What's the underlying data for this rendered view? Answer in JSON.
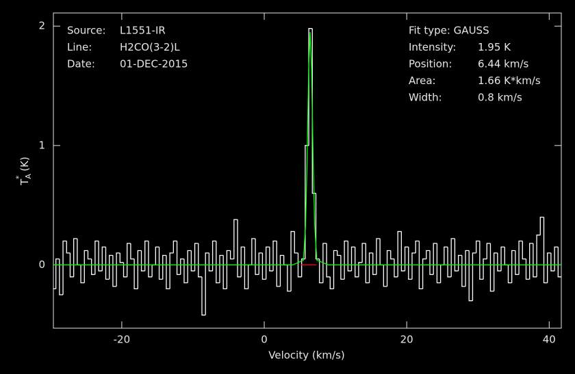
{
  "chart_data": {
    "type": "line",
    "xlabel": "Velocity (km/s)",
    "ylabel": {
      "base": "T",
      "sub": "A",
      "sup": "*",
      "unit": "(K)"
    },
    "xlim": [
      -29.6,
      41.7
    ],
    "ylim": [
      -0.53,
      2.11
    ],
    "xticks": [
      -20,
      0,
      20,
      40
    ],
    "yticks": [
      0,
      1,
      2
    ],
    "annotations": {
      "left": [
        [
          "Source:",
          "L1551-IR"
        ],
        [
          "Line:",
          "H2CO(3-2)L"
        ],
        [
          "Date:",
          "01-DEC-2015"
        ]
      ],
      "right": [
        [
          "Fit type: GAUSS"
        ],
        [
          "Intensity:",
          "1.95 K"
        ],
        [
          "Position:",
          "6.44 km/s"
        ],
        [
          "Area:",
          "1.66 K*km/s"
        ],
        [
          "Width:",
          "0.8 km/s"
        ]
      ]
    },
    "series": [
      {
        "color": "#ffffff",
        "drawstyle": "steps",
        "x": [
          -29.5,
          -29,
          -28.5,
          -28,
          -27.5,
          -27,
          -26.5,
          -26,
          -25.5,
          -25,
          -24.5,
          -24,
          -23.5,
          -23,
          -22.5,
          -22,
          -21.5,
          -21,
          -20.5,
          -20,
          -19.5,
          -19,
          -18.5,
          -18,
          -17.5,
          -17,
          -16.5,
          -16,
          -15.5,
          -15,
          -14.5,
          -14,
          -13.5,
          -13,
          -12.5,
          -12,
          -11.5,
          -11,
          -10.5,
          -10,
          -9.5,
          -9,
          -8.5,
          -8,
          -7.5,
          -7,
          -6.5,
          -6,
          -5.5,
          -5,
          -4.5,
          -4,
          -3.5,
          -3,
          -2.5,
          -2,
          -1.5,
          -1,
          -0.5,
          0,
          0.5,
          1,
          1.5,
          2,
          2.5,
          3,
          3.5,
          4,
          4.5,
          5,
          5.5,
          6,
          6.5,
          7,
          7.5,
          8,
          8.5,
          9,
          9.5,
          10,
          10.5,
          11,
          11.5,
          12,
          12.5,
          13,
          13.5,
          14,
          14.5,
          15,
          15.5,
          16,
          16.5,
          17,
          17.5,
          18,
          18.5,
          19,
          19.5,
          20,
          20.5,
          21,
          21.5,
          22,
          22.5,
          23,
          23.5,
          24,
          24.5,
          25,
          25.5,
          26,
          26.5,
          27,
          27.5,
          28,
          28.5,
          29,
          29.5,
          30,
          30.5,
          31,
          31.5,
          32,
          32.5,
          33,
          33.5,
          34,
          34.5,
          35,
          35.5,
          36,
          36.5,
          37,
          37.5,
          38,
          38.5,
          39,
          39.5,
          40,
          40.5,
          41,
          41.5
        ],
        "values": [
          -0.2,
          0.05,
          -0.25,
          0.2,
          0.1,
          -0.1,
          0.22,
          0.0,
          -0.15,
          0.12,
          0.05,
          -0.08,
          0.2,
          -0.05,
          0.15,
          -0.12,
          0.08,
          -0.18,
          0.1,
          0.02,
          -0.1,
          0.18,
          0.05,
          -0.2,
          0.12,
          -0.05,
          0.2,
          -0.1,
          0.0,
          0.15,
          -0.12,
          0.08,
          -0.2,
          0.1,
          0.2,
          -0.08,
          0.05,
          -0.15,
          0.12,
          -0.05,
          0.18,
          -0.1,
          -0.42,
          0.1,
          -0.05,
          0.2,
          -0.15,
          0.08,
          -0.2,
          0.12,
          0.05,
          0.38,
          -0.1,
          0.15,
          -0.2,
          0.0,
          0.22,
          -0.08,
          0.1,
          -0.12,
          0.15,
          -0.05,
          0.2,
          -0.18,
          0.08,
          0.0,
          -0.22,
          0.28,
          0.1,
          -0.1,
          0.05,
          1.0,
          1.98,
          0.6,
          0.05,
          -0.15,
          0.18,
          -0.1,
          -0.2,
          0.12,
          0.08,
          -0.12,
          0.2,
          -0.05,
          0.15,
          -0.1,
          0.02,
          0.18,
          -0.15,
          0.1,
          -0.08,
          0.22,
          0.0,
          -0.18,
          0.12,
          0.05,
          -0.1,
          0.28,
          -0.05,
          0.15,
          -0.12,
          0.1,
          0.2,
          -0.2,
          0.05,
          0.12,
          -0.08,
          0.18,
          -0.15,
          0.0,
          0.15,
          -0.1,
          0.22,
          -0.05,
          0.08,
          -0.18,
          0.12,
          -0.3,
          0.1,
          0.2,
          -0.12,
          0.05,
          0.18,
          -0.22,
          0.1,
          -0.05,
          0.15,
          0.0,
          -0.15,
          0.12,
          -0.08,
          0.2,
          0.05,
          -0.12,
          0.18,
          -0.1,
          0.25,
          0.4,
          -0.15,
          0.1,
          -0.05,
          0.15,
          -0.1
        ]
      },
      {
        "color": "#00ff00",
        "x": [
          -29.6,
          4.0,
          5.5,
          5.8,
          6.0,
          6.24,
          6.44,
          6.64,
          6.88,
          7.08,
          7.38,
          9.0,
          41.7
        ],
        "values": [
          0,
          0,
          0.04,
          0.33,
          0.84,
          1.64,
          1.95,
          1.64,
          0.84,
          0.33,
          0.04,
          0,
          0
        ]
      },
      {
        "color": "#ff0000",
        "x": [
          5.2,
          7.3
        ],
        "values": [
          0,
          0
        ]
      }
    ]
  }
}
